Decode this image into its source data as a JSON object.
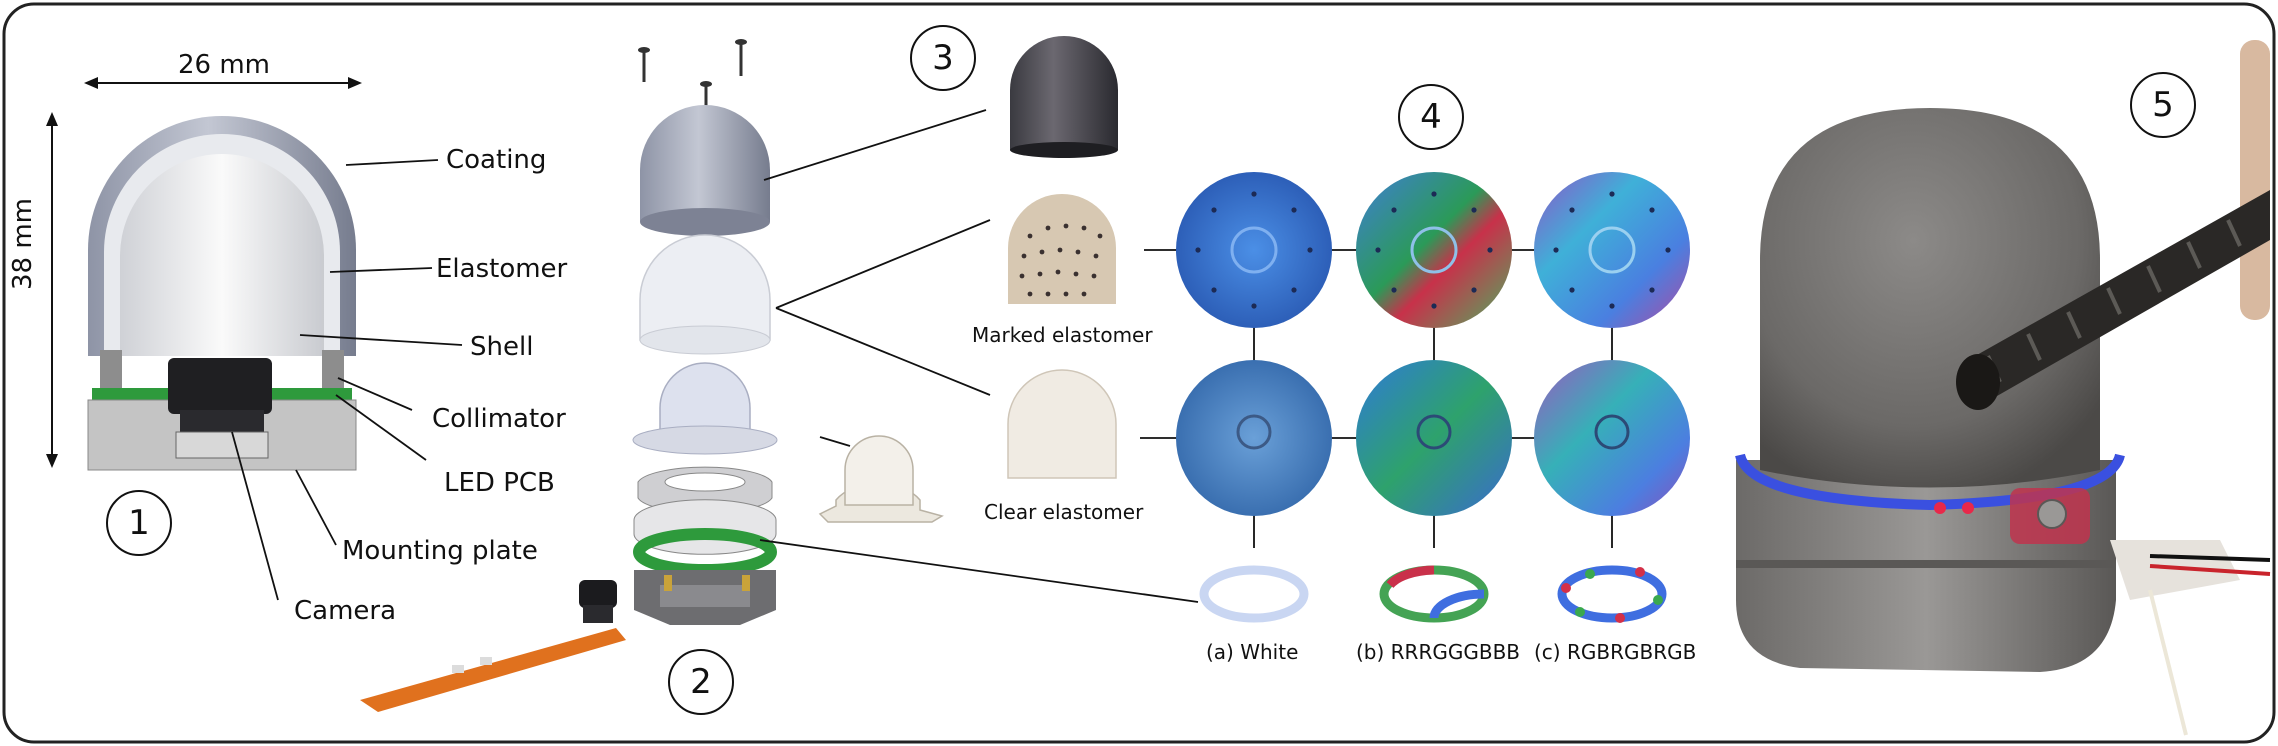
{
  "dimensions": {
    "width_label": "26 mm",
    "height_label": "38 mm"
  },
  "parts": {
    "coating": "Coating",
    "elastomer": "Elastomer",
    "shell": "Shell",
    "collimator": "Collimator",
    "led_pcb": "LED PCB",
    "mounting_plate": "Mounting plate",
    "camera": "Camera"
  },
  "panels": [
    "1",
    "2",
    "3",
    "4",
    "5"
  ],
  "elastomer_types": {
    "marked": "Marked elastomer",
    "clear": "Clear elastomer"
  },
  "led_configs": {
    "white": "(a) White",
    "rrrgggbbb": "(b) RRRGGGBBB",
    "rgbrgbrgb": "(c) RGBRGBRGB"
  },
  "colors": {
    "border": "#222222",
    "coating": "#a7acbc",
    "pcb_green": "#2e9a3c",
    "elastomer_light": "#dfe5ee"
  }
}
